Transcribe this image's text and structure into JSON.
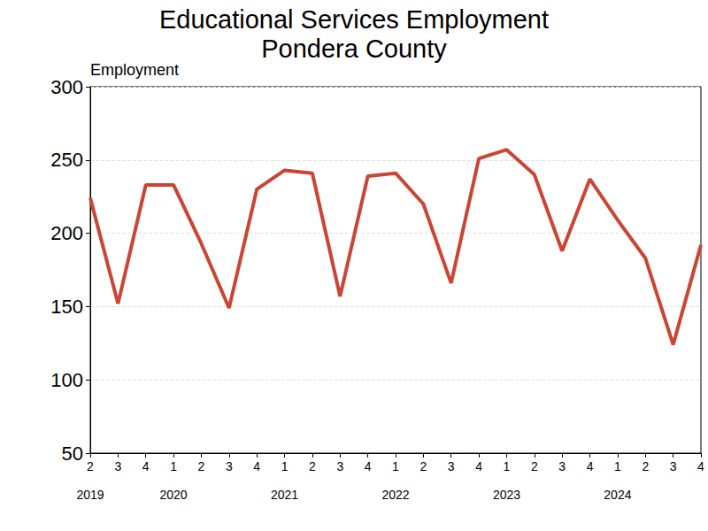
{
  "chart_data": {
    "type": "line",
    "title": "Educational Services Employment",
    "subtitle": "Pondera County",
    "y_label": "Employment",
    "categories": [
      "2",
      "3",
      "4",
      "1",
      "2",
      "3",
      "4",
      "1",
      "2",
      "3",
      "4",
      "1",
      "2",
      "3",
      "4",
      "1",
      "2",
      "3",
      "4",
      "1",
      "2",
      "3",
      "4"
    ],
    "category_groups": [
      "2019",
      null,
      null,
      "2020",
      null,
      null,
      null,
      "2021",
      null,
      null,
      null,
      "2022",
      null,
      null,
      null,
      "2023",
      null,
      null,
      null,
      "2024",
      null,
      null,
      null
    ],
    "values": [
      224,
      152,
      233,
      233,
      193,
      149,
      230,
      243,
      241,
      157,
      239,
      241,
      220,
      166,
      251,
      257,
      240,
      188,
      237,
      209,
      183,
      124,
      192
    ],
    "color": "#cc4433",
    "ylim": [
      50,
      300
    ],
    "yticks": [
      50,
      100,
      150,
      200,
      250,
      300
    ],
    "grid": true
  }
}
